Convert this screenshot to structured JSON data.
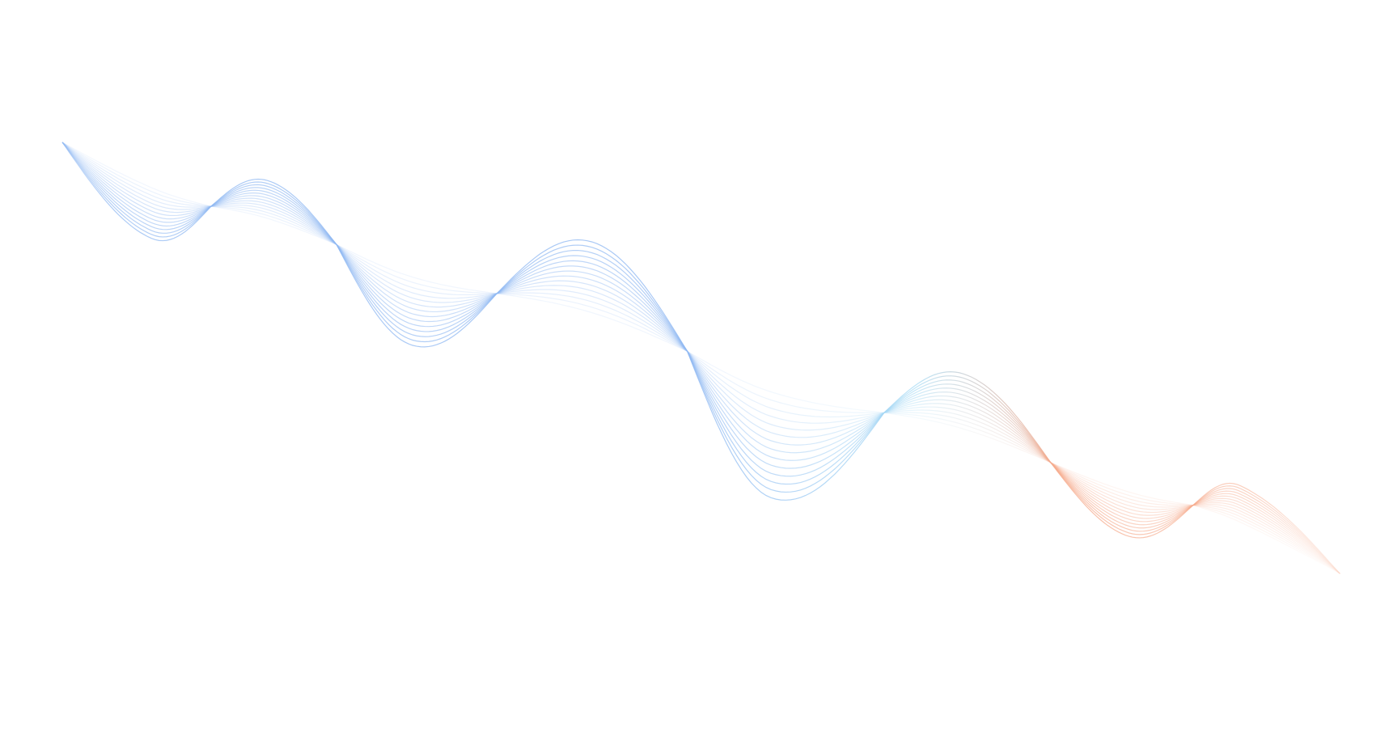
{
  "artwork": {
    "kind": "decorative-wave-lines",
    "colors": {
      "background": "#ffffff",
      "blue": "#8fb8f2",
      "cyan": "#a9dcf5",
      "orange": "#f6a98a"
    },
    "line_count": 14
  }
}
